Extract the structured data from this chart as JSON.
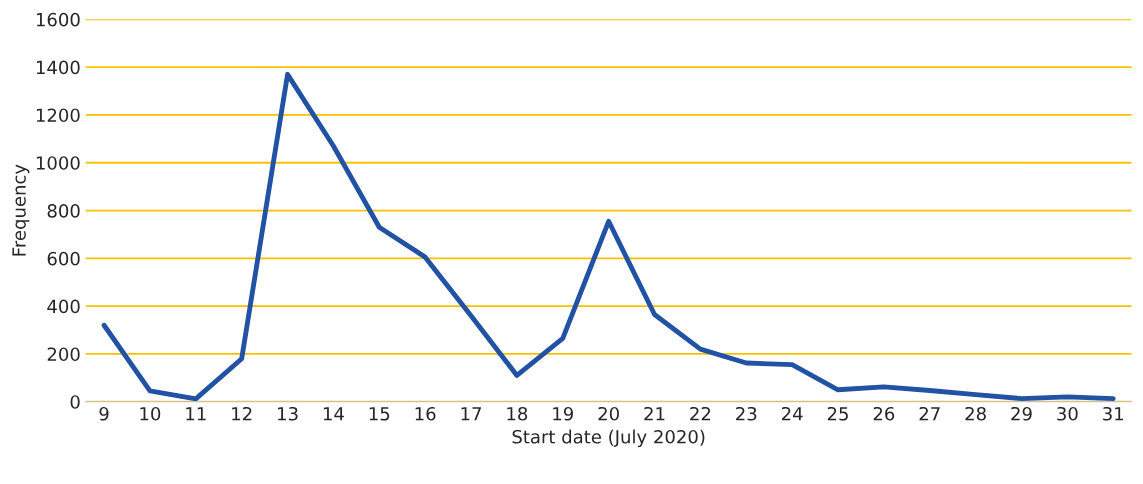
{
  "chart_data": {
    "type": "line",
    "xlabel": "Start date (July 2020)",
    "ylabel": "Frequency",
    "categories": [
      "9",
      "10",
      "11",
      "12",
      "13",
      "14",
      "15",
      "16",
      "17",
      "18",
      "19",
      "20",
      "21",
      "22",
      "23",
      "24",
      "25",
      "26",
      "27",
      "28",
      "29",
      "30",
      "31"
    ],
    "series": [
      {
        "color": "#2152a3",
        "values": [
          320,
          45,
          12,
          180,
          1370,
          1070,
          730,
          605,
          360,
          110,
          265,
          755,
          365,
          220,
          162,
          155,
          50,
          62,
          47,
          30,
          13,
          20,
          13
        ]
      }
    ],
    "ylim": [
      0,
      1600
    ],
    "yticks": [
      0,
      200,
      400,
      600,
      800,
      1000,
      1200,
      1400,
      1600
    ],
    "grid": "y",
    "line_style": "solid"
  }
}
